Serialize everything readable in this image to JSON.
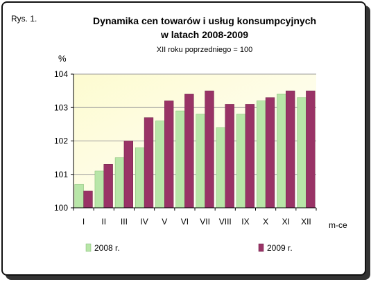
{
  "figure_label": "Rys. 1.",
  "chart_data": {
    "type": "bar",
    "title": "Dynamika cen towarów i usług konsumpcyjnych",
    "title_line2": "w latach 2008-2009",
    "subtitle": "XII roku poprzedniego = 100",
    "ylabel": "%",
    "xlabel": "m-ce",
    "ylim": [
      100,
      104
    ],
    "yticks": [
      100,
      101,
      102,
      103,
      104
    ],
    "categories": [
      "I",
      "II",
      "III",
      "IV",
      "V",
      "VI",
      "VII",
      "VIII",
      "IX",
      "X",
      "XI",
      "XII"
    ],
    "series": [
      {
        "name": "2008 r.",
        "color": "#b8e6a8",
        "values": [
          100.7,
          101.1,
          101.5,
          101.8,
          102.6,
          102.9,
          102.8,
          102.4,
          102.8,
          103.2,
          103.4,
          103.3
        ]
      },
      {
        "name": "2009 r.",
        "color": "#993366",
        "values": [
          100.5,
          101.3,
          102.0,
          102.7,
          103.2,
          103.4,
          103.5,
          103.1,
          103.1,
          103.3,
          103.5,
          103.5
        ]
      }
    ],
    "grid": true,
    "legend_position": "bottom",
    "plot_background": "#fcf9c8"
  }
}
